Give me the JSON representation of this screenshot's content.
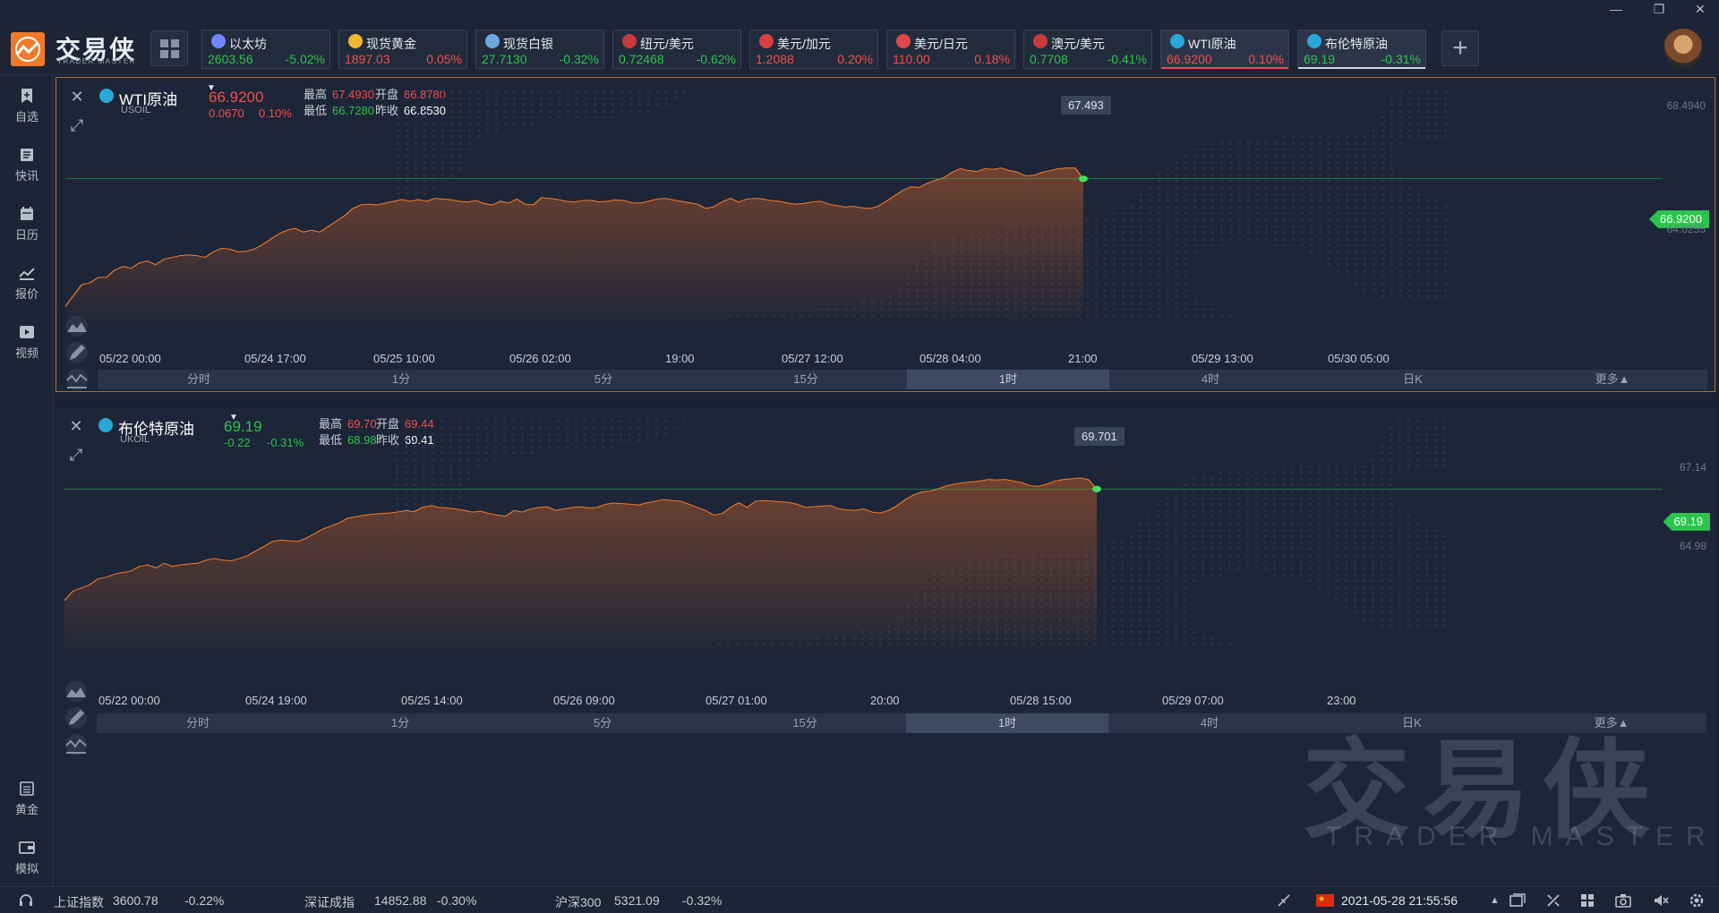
{
  "app": {
    "logo_text": "交易侠",
    "logo_sub": "TRADER MASTER",
    "watermark_text": "交易侠",
    "watermark_sub": "TRADER MASTER"
  },
  "tickers": [
    {
      "name": "以太坊",
      "price": "2603.56",
      "change": "-5.02%",
      "dir": "down",
      "icon_color": "#6f86ff",
      "icon": "ethereum-icon"
    },
    {
      "name": "现货黄金",
      "price": "1897.03",
      "change": "0.05%",
      "dir": "up",
      "icon_color": "#f2b630",
      "icon": "gold-icon"
    },
    {
      "name": "现货白银",
      "price": "27.7130",
      "change": "-0.32%",
      "dir": "down",
      "icon_color": "#6fa8dc",
      "icon": "silver-icon"
    },
    {
      "name": "纽元/美元",
      "price": "0.72468",
      "change": "-0.62%",
      "dir": "down",
      "icon_color": "#c83a3a",
      "icon": "nz-us-flag-icon"
    },
    {
      "name": "美元/加元",
      "price": "1.2088",
      "change": "0.20%",
      "dir": "up",
      "icon_color": "#d94141",
      "icon": "us-ca-flag-icon"
    },
    {
      "name": "美元/日元",
      "price": "110.00",
      "change": "0.18%",
      "dir": "up",
      "icon_color": "#e04848",
      "icon": "us-jp-flag-icon"
    },
    {
      "name": "澳元/美元",
      "price": "0.7708",
      "change": "-0.41%",
      "dir": "down",
      "icon_color": "#c83a3a",
      "icon": "au-us-flag-icon"
    },
    {
      "name": "WTI原油",
      "price": "66.9200",
      "change": "0.10%",
      "dir": "up",
      "icon_color": "#2aa7d6",
      "icon": "oil-icon",
      "underline": "#ef4f4f"
    },
    {
      "name": "布伦特原油",
      "price": "69.19",
      "change": "-0.31%",
      "dir": "down",
      "icon_color": "#2aa7d6",
      "icon": "oil-icon",
      "underline": "#d0d5de"
    }
  ],
  "sidebar": [
    {
      "label": "自选",
      "icon": "bookmark-icon"
    },
    {
      "label": "快讯",
      "icon": "news-icon"
    },
    {
      "label": "日历",
      "icon": "calendar-icon"
    },
    {
      "label": "报价",
      "icon": "quote-chart-icon"
    },
    {
      "label": "视频",
      "icon": "video-icon"
    },
    {
      "label": "黄金",
      "icon": "gold-icon"
    },
    {
      "label": "模拟",
      "icon": "wallet-icon"
    }
  ],
  "panels": [
    {
      "title": "WTI原油",
      "symbol": "USOIL",
      "price": "66.9200",
      "change": "0.0670",
      "change_pct": "0.10%",
      "dir": "up",
      "high_label": "最高",
      "high": "67.4930",
      "open_label": "开盘",
      "open": "66.8780",
      "low_label": "最低",
      "low": "66.7280",
      "prev_label": "昨收",
      "prev": "66.8530",
      "tooltip": "67.493",
      "price_tag": "66.9200",
      "yticks": [
        "68.4940",
        "64.0255"
      ],
      "xticks": [
        "05/22 00:00",
        "05/24 17:00",
        "05/25 10:00",
        "05/26 02:00",
        "19:00",
        "05/27 12:00",
        "05/28 04:00",
        "21:00",
        "05/29 13:00",
        "05/30 05:00"
      ],
      "timeframes": [
        "分时",
        "1分",
        "5分",
        "15分",
        "1时",
        "4时",
        "日K",
        "更多▲"
      ],
      "active_tf": 4
    },
    {
      "title": "布伦特原油",
      "symbol": "UKOIL",
      "price": "69.19",
      "change": "-0.22",
      "change_pct": "-0.31%",
      "dir": "down",
      "high_label": "最高",
      "high": "69.70",
      "open_label": "开盘",
      "open": "69.44",
      "low_label": "最低",
      "low": "68.98",
      "prev_label": "昨收",
      "prev": "69.41",
      "tooltip": "69.701",
      "price_tag": "69.19",
      "yticks": [
        "67.14",
        "64.98"
      ],
      "xticks": [
        "05/22 00:00",
        "05/24 19:00",
        "05/25 14:00",
        "05/26 09:00",
        "05/27 01:00",
        "20:00",
        "05/28 15:00",
        "05/29 07:00",
        "23:00"
      ],
      "timeframes": [
        "分时",
        "1分",
        "5分",
        "15分",
        "1时",
        "4时",
        "日K",
        "更多▲"
      ],
      "active_tf": 4
    }
  ],
  "chart_data": [
    {
      "type": "area",
      "title": "WTI原油",
      "ylim": [
        63.0,
        69.0
      ],
      "last": 66.92,
      "y": [
        63.4,
        63.7,
        64.0,
        64.05,
        64.2,
        64.2,
        64.4,
        64.5,
        64.45,
        64.6,
        64.65,
        64.55,
        64.7,
        64.75,
        64.8,
        64.82,
        64.8,
        64.75,
        64.9,
        65.0,
        64.98,
        64.9,
        64.92,
        64.98,
        65.1,
        65.25,
        65.4,
        65.5,
        65.55,
        65.45,
        65.5,
        65.45,
        65.6,
        65.75,
        65.9,
        66.1,
        66.2,
        66.22,
        66.2,
        66.25,
        66.3,
        66.35,
        66.3,
        66.35,
        66.3,
        66.38,
        66.36,
        66.34,
        66.3,
        66.28,
        66.32,
        66.24,
        66.2,
        66.3,
        66.25,
        66.36,
        66.22,
        66.2,
        66.4,
        66.38,
        66.35,
        66.3,
        66.28,
        66.32,
        66.33,
        66.28,
        66.3,
        66.34,
        66.32,
        66.26,
        66.25,
        66.3,
        66.36,
        66.38,
        66.34,
        66.3,
        66.26,
        66.22,
        66.1,
        66.15,
        66.28,
        66.38,
        66.28,
        66.36,
        66.38,
        66.36,
        66.32,
        66.3,
        66.25,
        66.22,
        66.24,
        66.28,
        66.3,
        66.22,
        66.18,
        66.14,
        66.16,
        66.12,
        66.1,
        66.16,
        66.3,
        66.45,
        66.6,
        66.7,
        66.68,
        66.8,
        66.88,
        66.95,
        67.1,
        67.2,
        67.15,
        67.12,
        67.2,
        67.18,
        67.22,
        67.15,
        67.1,
        67.0,
        67.02,
        67.1,
        67.15,
        67.2,
        67.22,
        67.22,
        66.92
      ]
    },
    {
      "type": "area",
      "title": "布伦特原油",
      "ylim": [
        64.0,
        71.0
      ],
      "last": 69.19,
      "y": [
        65.6,
        65.9,
        66.0,
        66.1,
        66.3,
        66.35,
        66.45,
        66.5,
        66.55,
        66.7,
        66.75,
        66.65,
        66.8,
        66.7,
        66.75,
        66.78,
        66.8,
        66.9,
        66.95,
        66.9,
        66.88,
        66.95,
        67.05,
        67.2,
        67.35,
        67.5,
        67.55,
        67.52,
        67.5,
        67.6,
        67.75,
        67.9,
        68.0,
        68.1,
        68.25,
        68.3,
        68.35,
        68.38,
        68.4,
        68.42,
        68.45,
        68.5,
        68.46,
        68.6,
        68.65,
        68.6,
        68.58,
        68.55,
        68.5,
        68.45,
        68.48,
        68.4,
        68.35,
        68.32,
        68.5,
        68.45,
        68.55,
        68.6,
        68.62,
        68.5,
        68.55,
        68.6,
        68.62,
        68.58,
        68.6,
        68.7,
        68.74,
        68.72,
        68.7,
        68.68,
        68.75,
        68.8,
        68.85,
        68.82,
        68.8,
        68.7,
        68.6,
        68.5,
        68.35,
        68.4,
        68.6,
        68.75,
        68.6,
        68.8,
        68.82,
        68.8,
        68.78,
        68.76,
        68.7,
        68.6,
        68.62,
        68.64,
        68.66,
        68.55,
        68.52,
        68.5,
        68.55,
        68.45,
        68.42,
        68.5,
        68.65,
        68.85,
        69.0,
        69.1,
        69.12,
        69.2,
        69.3,
        69.35,
        69.4,
        69.42,
        69.45,
        69.5,
        69.48,
        69.5,
        69.45,
        69.4,
        69.3,
        69.28,
        69.35,
        69.45,
        69.5,
        69.52,
        69.55,
        69.5,
        69.19
      ]
    }
  ],
  "status": {
    "items": [
      {
        "name": "上证指数",
        "price": "3600.78",
        "change": "-0.22%"
      },
      {
        "name": "深证成指",
        "price": "14852.88",
        "change": "-0.30%"
      },
      {
        "name": "沪深300",
        "price": "5321.09",
        "change": "-0.32%"
      }
    ],
    "datetime": "2021-05-28 21:55:56"
  }
}
